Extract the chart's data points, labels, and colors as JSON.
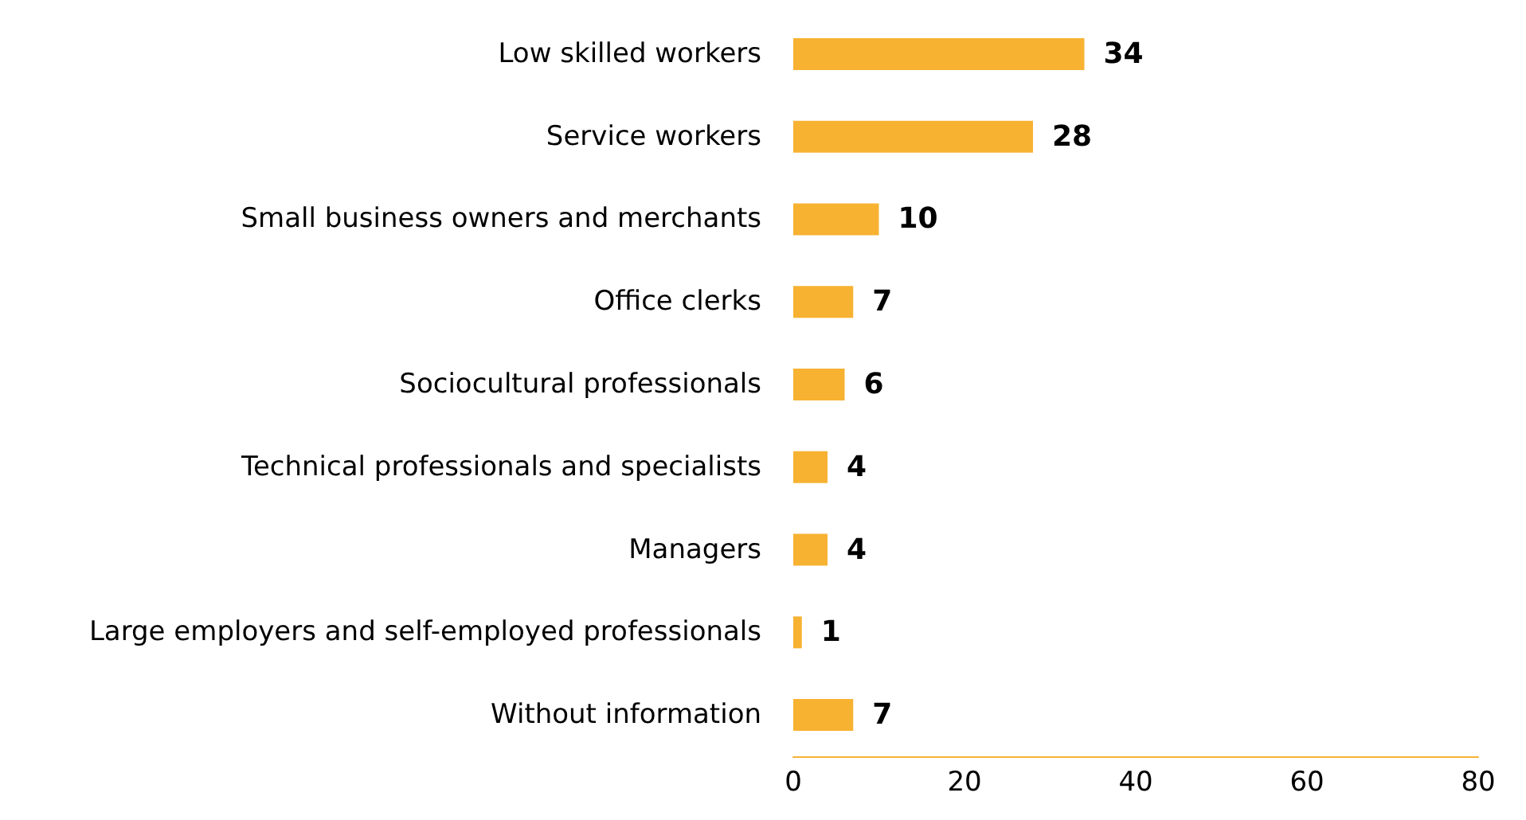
{
  "chart_data": {
    "type": "bar",
    "orientation": "horizontal",
    "categories": [
      "Low skilled workers",
      "Service workers",
      "Small business owners and merchants",
      "Office clerks",
      "Sociocultural professionals",
      "Technical professionals and specialists",
      "Managers",
      "Large employers and self-employed professionals",
      "Without information"
    ],
    "values": [
      34,
      28,
      10,
      7,
      6,
      4,
      4,
      1,
      7
    ],
    "color": "#f7b232",
    "data_labels": true,
    "xlim": [
      0,
      80
    ],
    "xticks": [
      0,
      20,
      40,
      60,
      80
    ],
    "grid": false
  }
}
